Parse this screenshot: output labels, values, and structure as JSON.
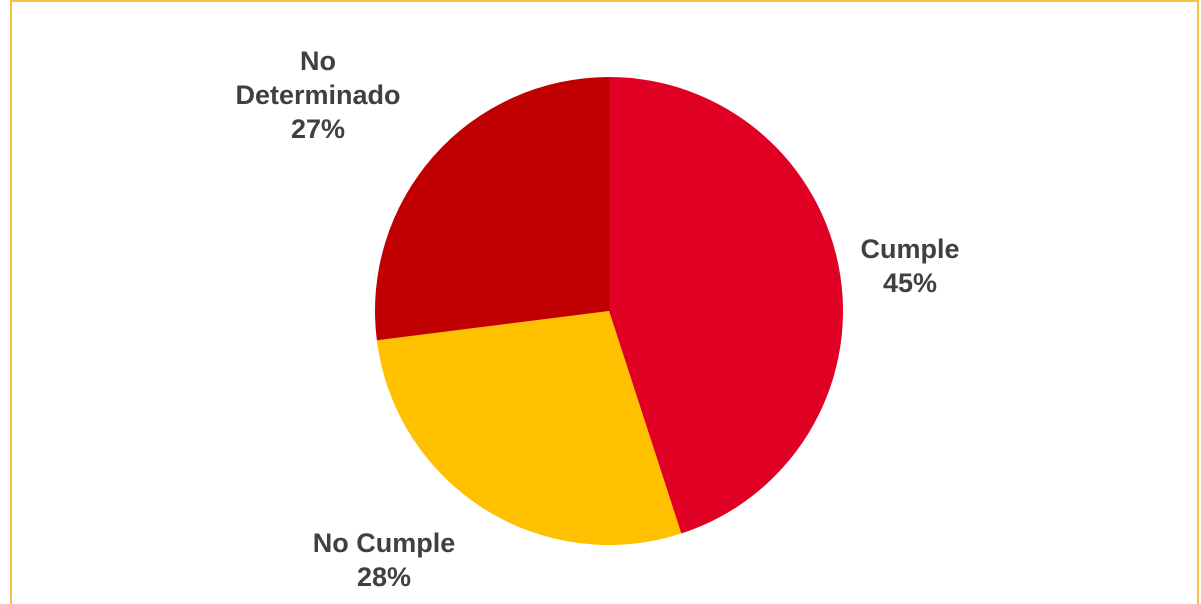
{
  "chart_data": {
    "type": "pie",
    "title": "",
    "categories": [
      "Cumple",
      "No Cumple",
      "No Determinado"
    ],
    "values": [
      45,
      28,
      27
    ],
    "labels": [
      [
        "Cumple",
        "45%"
      ],
      [
        "No Cumple",
        "28%"
      ],
      [
        "No",
        "Determinado",
        "27%"
      ]
    ],
    "colors": [
      "#df0024",
      "#ffc000",
      "#c00000"
    ],
    "legend": "none",
    "start_angle": "12 o'clock",
    "direction": "clockwise"
  }
}
